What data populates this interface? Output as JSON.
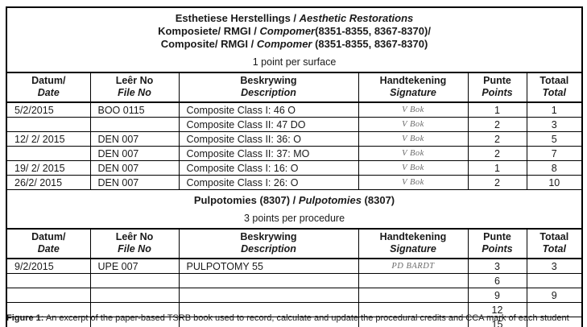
{
  "appearance": {
    "page_background": "#ffffff",
    "border_color": "#000000",
    "text_color": "#1a1a1a",
    "signature_ink": "#6a6a6a"
  },
  "columns": {
    "datum": {
      "af": "Datum/",
      "en": "Date"
    },
    "leer": {
      "af": "Leêr No",
      "en": "File No"
    },
    "beskrywing": {
      "af": "Beskrywing",
      "en": "Description"
    },
    "handtekening": {
      "af": "Handtekening",
      "en": "Signature"
    },
    "punte": {
      "af": "Punte",
      "en": "Points"
    },
    "totaal": {
      "af": "Totaal",
      "en": "Total"
    }
  },
  "restorations": {
    "title1_pre": "Esthetiese Herstellings / ",
    "title1_em": "Aesthetic Restorations",
    "title1_post": "",
    "title2_pre": "Komposiete/ RMGI / ",
    "title2_em": "Compomer",
    "title2_post": "(8351-8355, 8367-8370)/",
    "title3_pre": "Composite/ RMGI / ",
    "title3_em": "Compomer",
    "title3_post": " (8351-8355, 8367-8370)",
    "points_rule": "1 point per surface",
    "rows": [
      {
        "date": "5/2/2015",
        "file": "BOO 0115",
        "desc": "Composite Class I: 46 O",
        "sig": "V Bok",
        "points": "1",
        "total": "1"
      },
      {
        "date": "",
        "file": "",
        "desc": "Composite Class II: 47 DO",
        "sig": "V Bok",
        "points": "2",
        "total": "3"
      },
      {
        "date": "12/ 2/ 2015",
        "file": "DEN 007",
        "desc": "Composite Class II: 36: O",
        "sig": "V Bok",
        "points": "2",
        "total": "5"
      },
      {
        "date": "",
        "file": "DEN 007",
        "desc": "Composite Class II: 37: MO",
        "sig": "V Bok",
        "points": "2",
        "total": "7"
      },
      {
        "date": "19/ 2/ 2015",
        "file": "DEN 007",
        "desc": "Composite Class I: 16: O",
        "sig": "V Bok",
        "points": "1",
        "total": "8"
      },
      {
        "date": "26/2/ 2015",
        "file": "DEN 007",
        "desc": "Composite Class I: 26: O",
        "sig": "V Bok",
        "points": "2",
        "total": "10"
      }
    ]
  },
  "pulpotomies": {
    "title_pre": "Pulpotomies (8307) / ",
    "title_em": "Pulpotomies",
    "title_post": " (8307)",
    "points_rule": "3 points per procedure",
    "rows": [
      {
        "date": "9/2/2015",
        "file": "UPE 007",
        "desc": "PULPOTOMY 55",
        "sig": "PD BARDT",
        "points": "3",
        "total": "3"
      },
      {
        "date": "",
        "file": "",
        "desc": "",
        "sig": "",
        "points": "6",
        "total": ""
      },
      {
        "date": "",
        "file": "",
        "desc": "",
        "sig": "",
        "points": "9",
        "total": "9"
      },
      {
        "date": "",
        "file": "",
        "desc": "",
        "sig": "",
        "points": "12",
        "total": ""
      },
      {
        "date": "",
        "file": "",
        "desc": "",
        "sig": "",
        "points": "15",
        "total": ""
      }
    ]
  },
  "caption": {
    "label": "Figure 1:",
    "text": " An excerpt of the paper-based TSRB book used to record, calculate and update the procedural credits and CCA mark of each student"
  }
}
